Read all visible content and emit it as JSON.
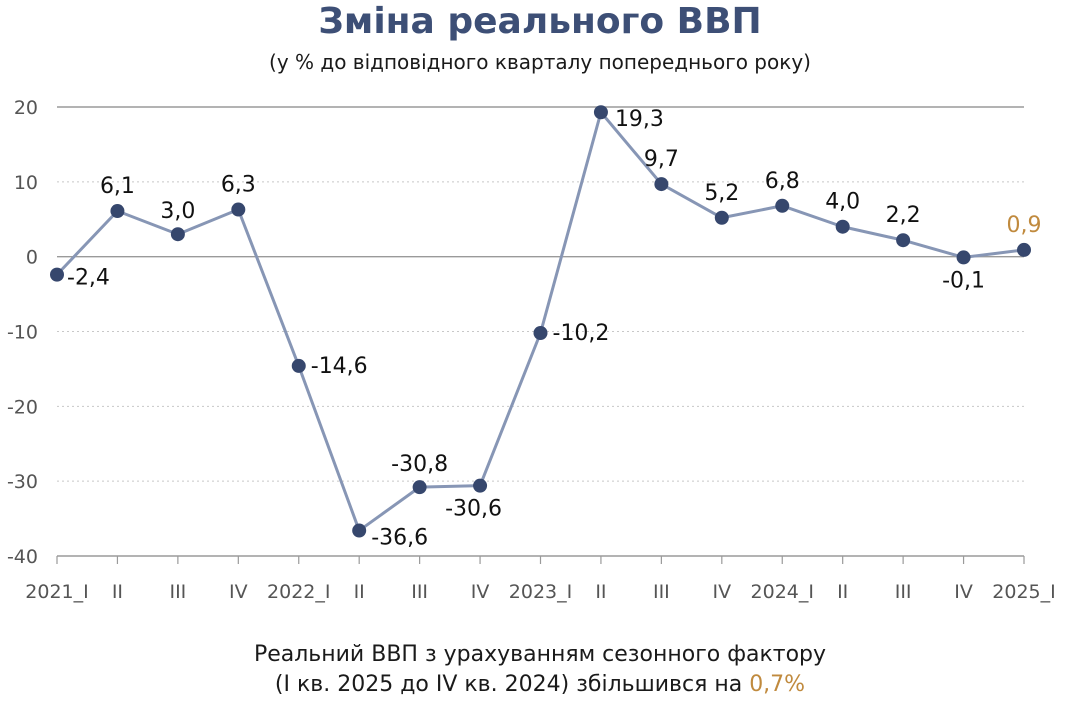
{
  "title": "Зміна реального ВВП",
  "subtitle": "(у % до відповідного кварталу попереднього року)",
  "chart_data": {
    "type": "line",
    "categories": [
      "2021_I",
      "II",
      "III",
      "IV",
      "2022_I",
      "II",
      "III",
      "IV",
      "2023_I",
      "II",
      "III",
      "IV",
      "2024_I",
      "II",
      "III",
      "IV",
      "2025_I"
    ],
    "values": [
      -2.4,
      6.1,
      3.0,
      6.3,
      -14.6,
      -36.6,
      -30.8,
      -30.6,
      -10.2,
      19.3,
      9.7,
      5.2,
      6.8,
      4.0,
      2.2,
      -0.1,
      0.9
    ],
    "labels": [
      "-2,4",
      "6,1",
      "3,0",
      "6,3",
      "-14,6",
      "-36,6",
      "-30,8",
      "-30,6",
      "-10,2",
      "19,3",
      "9,7",
      "5,2",
      "6,8",
      "4,0",
      "2,2",
      "-0,1",
      "0,9"
    ],
    "ylim": [
      -40,
      20
    ],
    "yticks": [
      "20",
      "10",
      "0",
      "-10",
      "-20",
      "-30",
      "-40"
    ],
    "grid": true,
    "line_color": "#8796b5",
    "marker_color": "#36476d",
    "highlight_label_color": "#c08a3e"
  },
  "footer": {
    "line1": "Реальний ВВП з урахуванням сезонного фактору",
    "line2_prefix": "(І кв. 2025 до IV кв. 2024) збільшився на ",
    "line2_value": "0,7%"
  }
}
